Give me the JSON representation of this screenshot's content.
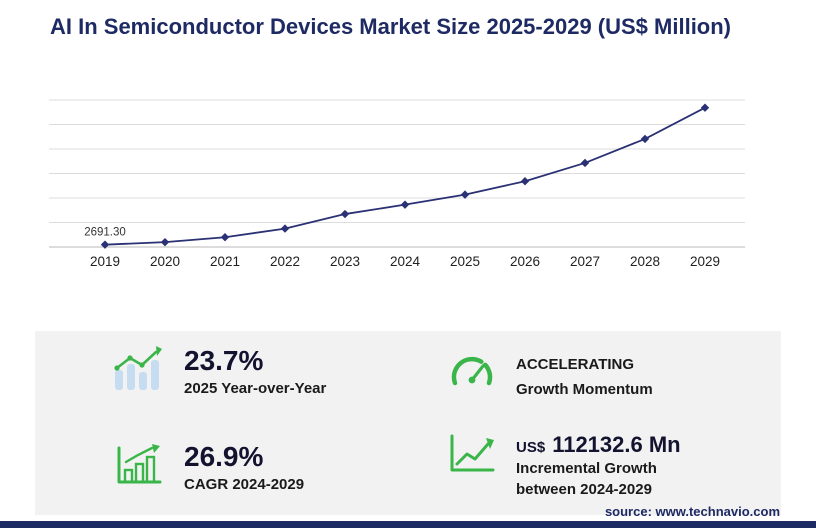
{
  "title": "AI In Semiconductor Devices Market Size 2025-2029 (US$ Million)",
  "chart_data": {
    "type": "line",
    "title": "AI In Semiconductor Devices Market Size 2025-2029 (US$ Million)",
    "x": [
      "2019",
      "2020",
      "2021",
      "2022",
      "2023",
      "2024",
      "2025",
      "2026",
      "2027",
      "2028",
      "2029"
    ],
    "values": [
      2691.3,
      5600,
      11300,
      21300,
      38100,
      48966.4,
      60571.4,
      76100,
      97200,
      125000,
      161099
    ],
    "first_point_label": "2691.30",
    "xlabel": "",
    "ylabel": "",
    "ylim": [
      0,
      170000
    ],
    "grid": true,
    "gridline_count": 7,
    "legend": "none",
    "line_color": "#2a3174",
    "marker": "diamond"
  },
  "stats": {
    "yoy": {
      "value": "23.7%",
      "label": "2025 Year-over-Year"
    },
    "momentum": {
      "line1": "ACCELERATING",
      "line2": "Growth Momentum"
    },
    "cagr": {
      "value": "26.9%",
      "label": "CAGR 2024-2029"
    },
    "incremental": {
      "currency": "US$",
      "value": "112132.6 Mn",
      "line1": "Incremental Growth",
      "line2": "between 2024-2029"
    }
  },
  "source": "source: www.technavio.com",
  "icons": {
    "yoy": "bar-growth-icon",
    "momentum": "speedometer-icon",
    "cagr": "bar-chart-frame-icon",
    "incremental": "trend-arrow-chart-icon"
  },
  "colors": {
    "navy": "#1e2a63",
    "green": "#3ab54a",
    "panel": "#f2f2f2",
    "bars_light_blue": "#c6dcf0"
  }
}
